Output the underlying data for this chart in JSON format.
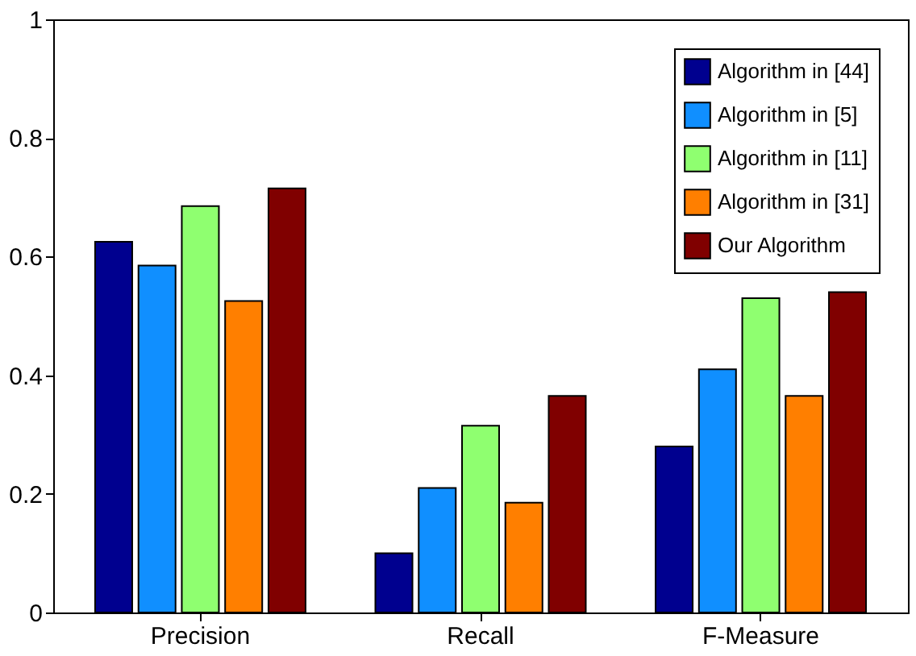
{
  "chart_data": {
    "type": "bar",
    "categories": [
      "Precision",
      "Recall",
      "F-Measure"
    ],
    "series": [
      {
        "name": "Algorithm in [44]",
        "color": "#00008f",
        "values": [
          0.625,
          0.1,
          0.28
        ]
      },
      {
        "name": "Algorithm in [5]",
        "color": "#108fff",
        "values": [
          0.585,
          0.21,
          0.41
        ]
      },
      {
        "name": "Algorithm in [11]",
        "color": "#8fff70",
        "values": [
          0.685,
          0.315,
          0.53
        ]
      },
      {
        "name": "Algorithm in [31]",
        "color": "#ff7f00",
        "values": [
          0.525,
          0.185,
          0.365
        ]
      },
      {
        "name": "Our Algorithm",
        "color": "#800000",
        "values": [
          0.715,
          0.365,
          0.54
        ]
      }
    ],
    "ylim": [
      0,
      1
    ],
    "yticks": [
      0,
      0.2,
      0.4,
      0.6,
      0.8,
      1
    ],
    "grid": false,
    "legend": "top right"
  }
}
